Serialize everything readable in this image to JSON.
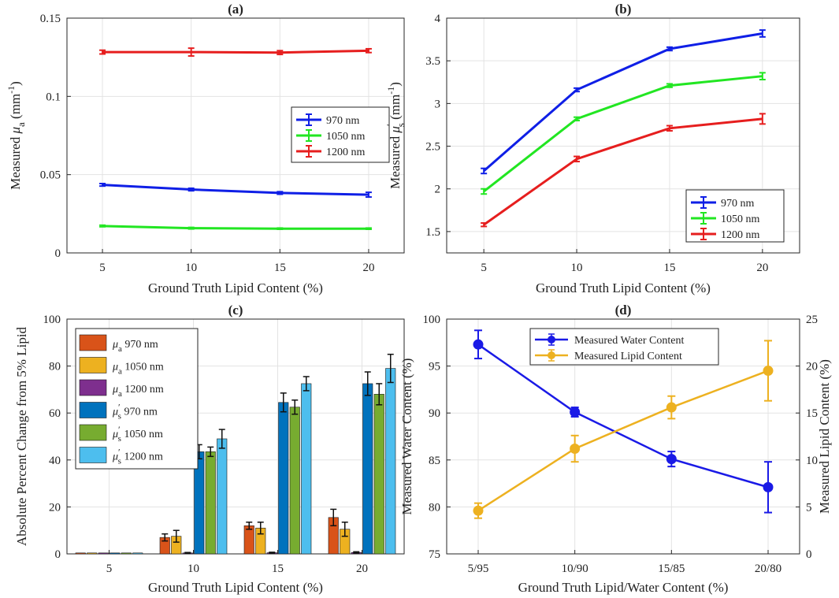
{
  "colors": {
    "blue": "#0f1fe6",
    "green": "#22e622",
    "red": "#e61e1e",
    "bar_a970": "#d95319",
    "bar_a1050": "#edb120",
    "bar_a1200": "#7e2f8e",
    "bar_s970": "#0072bd",
    "bar_s1050": "#77ac30",
    "bar_s1200": "#4dbeee",
    "water": "#1a1ae6",
    "lipid": "#edb120"
  },
  "chart_data": [
    {
      "id": "a",
      "type": "line",
      "title": "(a)",
      "xlabel": "Ground Truth Lipid Content (%)",
      "ylabel": {
        "prefix": "Measured ",
        "symbol": "μ",
        "sub": "a",
        "units": " (mm",
        "exp": "-1",
        "close": ")"
      },
      "x": [
        5,
        10,
        15,
        20
      ],
      "xticks": [
        "5",
        "10",
        "15",
        "20"
      ],
      "xlim": [
        3,
        22
      ],
      "ylim": [
        0,
        0.15
      ],
      "yticks": [
        0,
        0.05,
        0.1,
        0.15
      ],
      "ytick_labels": [
        "0",
        "0.05",
        "0.1",
        "0.15"
      ],
      "grid": true,
      "legend": {
        "position": "mid-right",
        "labels": [
          "970 nm",
          "1050 nm",
          "1200 nm"
        ]
      },
      "series": [
        {
          "name": "970 nm",
          "color": "blue",
          "values": [
            0.0435,
            0.0405,
            0.0383,
            0.0372
          ],
          "err": [
            0.0008,
            0.0008,
            0.0008,
            0.0015
          ]
        },
        {
          "name": "1050 nm",
          "color": "green",
          "values": [
            0.0172,
            0.0158,
            0.0155,
            0.0155
          ],
          "err": [
            0.0005,
            0.0005,
            0.0004,
            0.0004
          ]
        },
        {
          "name": "1200 nm",
          "color": "red",
          "values": [
            0.1283,
            0.1283,
            0.128,
            0.1292
          ],
          "err": [
            0.0012,
            0.0025,
            0.0012,
            0.0012
          ]
        }
      ]
    },
    {
      "id": "b",
      "type": "line",
      "title": "(b)",
      "xlabel": "Ground Truth Lipid Content (%)",
      "ylabel": {
        "prefix": "Measured ",
        "symbol": "μ",
        "sub": "s",
        "sup": "′",
        "units": " (mm",
        "exp": "-1",
        "close": ")"
      },
      "x": [
        5,
        10,
        15,
        20
      ],
      "xticks": [
        "5",
        "10",
        "15",
        "20"
      ],
      "xlim": [
        3,
        22
      ],
      "ylim": [
        1.25,
        4
      ],
      "yticks": [
        1.5,
        2,
        2.5,
        3,
        3.5,
        4
      ],
      "ytick_labels": [
        "1.5",
        "2",
        "2.5",
        "3",
        "3.5",
        "4"
      ],
      "grid": true,
      "legend": {
        "position": "bottom-right",
        "labels": [
          "970 nm",
          "1050 nm",
          "1200 nm"
        ]
      },
      "series": [
        {
          "name": "970 nm",
          "color": "blue",
          "values": [
            2.21,
            3.16,
            3.64,
            3.82
          ],
          "err": [
            0.03,
            0.02,
            0.02,
            0.04
          ]
        },
        {
          "name": "1050 nm",
          "color": "green",
          "values": [
            1.97,
            2.82,
            3.21,
            3.32
          ],
          "err": [
            0.03,
            0.02,
            0.02,
            0.04
          ]
        },
        {
          "name": "1200 nm",
          "color": "red",
          "values": [
            1.58,
            2.35,
            2.71,
            2.82
          ],
          "err": [
            0.02,
            0.03,
            0.03,
            0.06
          ]
        }
      ]
    },
    {
      "id": "c",
      "type": "bar",
      "title": "(c)",
      "xlabel": "Ground Truth Lipid Content (%)",
      "ylabel": "Absolute Percent Change from 5% Lipid",
      "categories": [
        "5",
        "10",
        "15",
        "20"
      ],
      "ylim": [
        0,
        100
      ],
      "yticks": [
        0,
        20,
        40,
        60,
        80,
        100
      ],
      "ytick_labels": [
        "0",
        "20",
        "40",
        "60",
        "80",
        "100"
      ],
      "grid": true,
      "legend": {
        "position": "top-left"
      },
      "series": [
        {
          "name": "970 nm",
          "symbol": "μ",
          "sub": "a",
          "prime": false,
          "color": "bar_a970",
          "values": [
            0,
            7,
            12,
            15.5
          ],
          "err": [
            0,
            1.5,
            1.5,
            3.5
          ]
        },
        {
          "name": "1050 nm",
          "symbol": "μ",
          "sub": "a",
          "prime": false,
          "color": "bar_a1050",
          "values": [
            0,
            7.5,
            11,
            10.5
          ],
          "err": [
            0,
            2.5,
            2.5,
            3
          ]
        },
        {
          "name": "1200 nm",
          "symbol": "μ",
          "sub": "a",
          "prime": false,
          "color": "bar_a1200",
          "values": [
            0,
            0.4,
            0.5,
            0.6
          ],
          "err": [
            0,
            0.2,
            0.2,
            0.3
          ]
        },
        {
          "name": "970 nm",
          "symbol": "μ",
          "sub": "s",
          "prime": true,
          "color": "bar_s970",
          "values": [
            0,
            43.5,
            64.5,
            72.5
          ],
          "err": [
            0,
            3,
            4,
            5
          ]
        },
        {
          "name": "1050 nm",
          "symbol": "μ",
          "sub": "s",
          "prime": true,
          "color": "bar_s1050",
          "values": [
            0,
            43.5,
            62.5,
            68
          ],
          "err": [
            0,
            2,
            3,
            4.5
          ]
        },
        {
          "name": "1200 nm",
          "symbol": "μ",
          "sub": "s",
          "prime": true,
          "color": "bar_s1200",
          "values": [
            0,
            49,
            72.5,
            79
          ],
          "err": [
            0,
            4,
            3,
            6
          ]
        }
      ]
    },
    {
      "id": "d",
      "type": "line",
      "title": "(d)",
      "xlabel": "Ground Truth Lipid/Water Content (%)",
      "ylabel_left": "Measured Water Content (%)",
      "ylabel_right": "Measured Lipid Content (%)",
      "x_labels": [
        "5/95",
        "10/90",
        "15/85",
        "20/80"
      ],
      "ylim_left": [
        75,
        100
      ],
      "yticks_left": [
        75,
        80,
        85,
        90,
        95,
        100
      ],
      "ytick_labels_left": [
        "75",
        "80",
        "85",
        "90",
        "95",
        "100"
      ],
      "ylim_right": [
        0,
        25
      ],
      "yticks_right": [
        0,
        5,
        10,
        15,
        20,
        25
      ],
      "ytick_labels_right": [
        "0",
        "5",
        "10",
        "15",
        "20",
        "25"
      ],
      "grid": true,
      "legend": {
        "position": "top-center",
        "labels": [
          "Measured Water Content",
          "Measured Lipid Content"
        ]
      },
      "series": [
        {
          "name": "Measured Water Content",
          "axis": "left",
          "color": "water",
          "values": [
            97.3,
            90.1,
            85.1,
            82.1
          ],
          "err": [
            1.5,
            0.5,
            0.8,
            2.7
          ]
        },
        {
          "name": "Measured Lipid Content",
          "axis": "right",
          "color": "lipid",
          "values": [
            4.6,
            11.2,
            15.6,
            19.5
          ],
          "err": [
            0.8,
            1.4,
            1.2,
            3.2
          ]
        }
      ]
    }
  ]
}
